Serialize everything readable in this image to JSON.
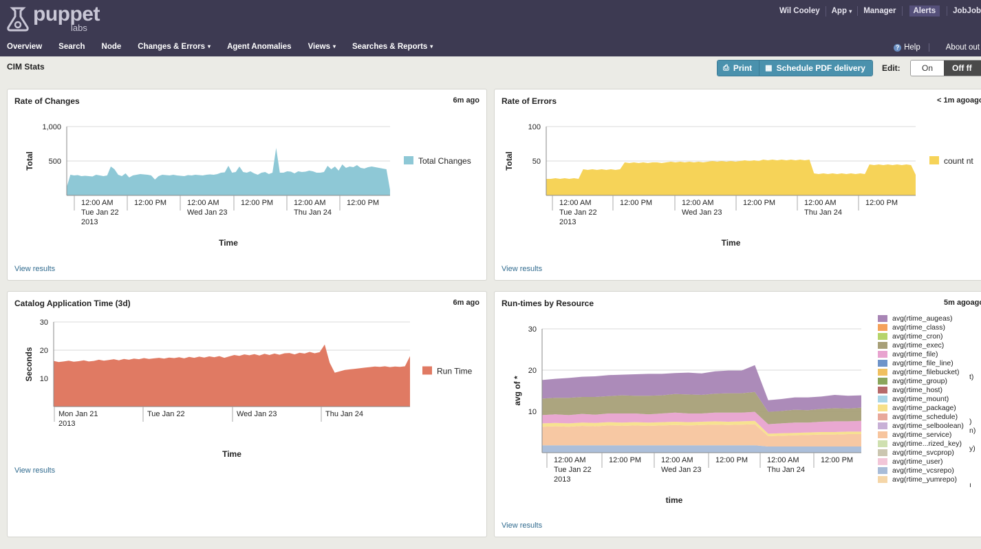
{
  "brand": {
    "word": "puppet",
    "sub": "labs"
  },
  "user_nav": {
    "user": "Wil Cooley",
    "app": "App",
    "manager": "Manager",
    "alerts": "Alerts",
    "jobs": "JobJob"
  },
  "main_nav": [
    "Overview",
    "Search",
    "Node",
    "Changes & Errors",
    "Agent Anomalies",
    "Views",
    "Searches & Reports"
  ],
  "main_nav_dropdowns": [
    false,
    false,
    false,
    true,
    false,
    true,
    true
  ],
  "right_nav": {
    "help": "Help",
    "about": "About out"
  },
  "page_title": "CIM Stats",
  "toolbar": {
    "print": "Print",
    "schedule": "Schedule PDF delivery",
    "edit_label": "Edit:",
    "on": "On",
    "off": "Off  ff"
  },
  "colors": {
    "topbar": "#3d3a52",
    "button": "#4a91ad",
    "link": "#2f6a8e"
  },
  "panels": {
    "changes": {
      "title": "Rate of Changes",
      "age": "6m ago",
      "link": "View results"
    },
    "errors": {
      "title": "Rate of Errors",
      "age": "< 1m agoago",
      "link": "View results"
    },
    "catalog": {
      "title": "Catalog Application Time (3d)",
      "age": "6m ago",
      "link": "View results"
    },
    "runtimes": {
      "title": "Run-times by Resource",
      "age": "5m agoago",
      "link": "View results"
    }
  },
  "chart_data": [
    {
      "type": "area",
      "title": "Rate of Changes",
      "xlabel": "Time",
      "ylabel": "Total",
      "ylim": [
        0,
        1000
      ],
      "yticks": [
        "1,000",
        "500"
      ],
      "xticks": [
        "12:00 AM\nTue Jan 22\n2013",
        "12:00 PM",
        "12:00 AM\nWed Jan 23",
        "12:00 PM",
        "12:00 AM\nThu Jan 24",
        "12:00 PM"
      ],
      "color": "#8ec8d6",
      "legend": "right",
      "series": [
        {
          "name": "Total Changes",
          "values": [
            120,
            300,
            290,
            295,
            280,
            285,
            280,
            275,
            300,
            290,
            280,
            290,
            420,
            380,
            300,
            280,
            320,
            260,
            290,
            300,
            310,
            305,
            300,
            290,
            230,
            280,
            300,
            295,
            290,
            300,
            290,
            285,
            280,
            295,
            290,
            300,
            295,
            290,
            300,
            305,
            300,
            310,
            330,
            335,
            430,
            330,
            340,
            420,
            340,
            330,
            350,
            320,
            300,
            330,
            340,
            310,
            330,
            690,
            330,
            330,
            350,
            345,
            320,
            350,
            340,
            345,
            360,
            350,
            330,
            330,
            340,
            430,
            380,
            420,
            360,
            450,
            400,
            420,
            410,
            440,
            400,
            390,
            410,
            420,
            410,
            400,
            390,
            380,
            80
          ]
        }
      ]
    },
    {
      "type": "area",
      "title": "Rate of Errors",
      "xlabel": "Time",
      "ylabel": "Total",
      "ylim": [
        0,
        100
      ],
      "yticks": [
        "100",
        "50"
      ],
      "xticks": [
        "12:00 AM\nTue Jan 22\n2013",
        "12:00 PM",
        "12:00 AM\nWed Jan 23",
        "12:00 PM",
        "12:00 AM\nThu Jan 24",
        "12:00 PM"
      ],
      "color": "#f6d358",
      "legend": "right",
      "series": [
        {
          "name": "count nt",
          "values": [
            24,
            24,
            25,
            24,
            25,
            24,
            25,
            24,
            38,
            37,
            38,
            37,
            38,
            37,
            38,
            37,
            38,
            48,
            47,
            48,
            47,
            48,
            47,
            48,
            48,
            47,
            48,
            49,
            48,
            49,
            48,
            49,
            48,
            49,
            48,
            49,
            50,
            49,
            50,
            49,
            50,
            49,
            50,
            51,
            50,
            51,
            50,
            52,
            51,
            52,
            51,
            52,
            51,
            52,
            51,
            52,
            51,
            52,
            32,
            31,
            32,
            31,
            32,
            31,
            32,
            31,
            32,
            31,
            32,
            31,
            45,
            44,
            45,
            44,
            45,
            44,
            45,
            44,
            45,
            44,
            30
          ]
        }
      ]
    },
    {
      "type": "area",
      "title": "Catalog Application Time (3d)",
      "xlabel": "Time",
      "ylabel": "Seconds",
      "ylim": [
        0,
        30
      ],
      "yticks": [
        "30",
        "20",
        "10"
      ],
      "xticks": [
        "Mon Jan 21\n2013",
        "Tue Jan 22",
        "Wed Jan 23",
        "Thu Jan 24"
      ],
      "color": "#e07a63",
      "legend": "right",
      "series": [
        {
          "name": "Run Time",
          "values": [
            16.2,
            15.8,
            16.0,
            16.3,
            15.9,
            16.1,
            16.4,
            16.0,
            16.2,
            16.6,
            16.3,
            16.5,
            16.8,
            16.4,
            16.9,
            16.6,
            17.0,
            16.8,
            17.2,
            16.9,
            17.1,
            17.3,
            17.0,
            17.4,
            17.2,
            17.5,
            17.1,
            17.6,
            17.3,
            17.7,
            17.4,
            17.8,
            17.5,
            17.9,
            17.3,
            17.8,
            18.3,
            18.0,
            18.5,
            18.2,
            18.6,
            18.1,
            18.7,
            18.3,
            18.8,
            18.4,
            18.9,
            19.0,
            18.5,
            19.1,
            18.8,
            19.4,
            18.9,
            19.3,
            22.0,
            15.5,
            12.0,
            12.5,
            13.0,
            13.2,
            13.4,
            13.6,
            13.8,
            14.0,
            14.2,
            14.1,
            14.3,
            14.0,
            14.2,
            14.1,
            14.3,
            17.9
          ]
        }
      ]
    },
    {
      "type": "area",
      "stacked": true,
      "title": "Run-times by Resource",
      "xlabel": "time",
      "ylabel": "avg of *",
      "ylim": [
        0,
        30
      ],
      "yticks": [
        "30",
        "20",
        "10"
      ],
      "xticks": [
        "12:00 AM\nTue Jan 22\n2013",
        "12:00 PM",
        "12:00 AM\nWed Jan 23",
        "12:00 PM",
        "12:00 AM\nThu Jan 24",
        "12:00 PM"
      ],
      "legend": "right",
      "series": [
        {
          "name": "avg(rtime_augeas)",
          "color": "#a885b5",
          "values": [
            4.5,
            4.6,
            4.8,
            4.9,
            5.0,
            5.1,
            5.0,
            5.2,
            5.3,
            5.2,
            5.1,
            5.3,
            5.2,
            5.4,
            5.5,
            5.5,
            6.5,
            2.8,
            2.9,
            3.0,
            3.1,
            3.0,
            3.2,
            3.1,
            3.0
          ]
        },
        {
          "name": "avg(rtime_exec)",
          "color": "#a8a078",
          "values": [
            4.0,
            4.0,
            4.2,
            4.1,
            4.3,
            4.2,
            4.4,
            4.3,
            4.5,
            4.4,
            4.5,
            4.6,
            4.5,
            4.6,
            4.7,
            4.7,
            4.8,
            3.0,
            3.0,
            3.1,
            3.0,
            3.1,
            3.2,
            3.1,
            3.2
          ]
        },
        {
          "name": "avg(rtime_file)",
          "color": "#e8a3cf",
          "values": [
            2.0,
            2.1,
            2.0,
            2.1,
            2.0,
            2.1,
            2.2,
            2.1,
            2.0,
            2.1,
            2.2,
            2.1,
            2.0,
            2.1,
            2.2,
            2.1,
            2.2,
            2.3,
            2.4,
            2.5,
            2.4,
            2.5,
            2.6,
            2.5,
            2.6
          ]
        },
        {
          "name": "avg(rtime_package)",
          "color": "#f7e08a",
          "values": [
            0.8,
            0.8,
            0.8,
            0.8,
            0.8,
            0.8,
            0.8,
            0.8,
            0.8,
            0.8,
            0.8,
            0.8,
            0.8,
            0.8,
            0.8,
            0.8,
            0.8,
            0.6,
            0.6,
            0.6,
            0.6,
            0.6,
            0.6,
            0.6,
            0.6
          ]
        },
        {
          "name": "avg(rtime_service)",
          "color": "#f7c59e",
          "values": [
            4.5,
            4.6,
            4.5,
            4.7,
            4.6,
            4.8,
            4.7,
            4.8,
            4.7,
            4.8,
            4.9,
            4.8,
            4.9,
            5.0,
            4.9,
            5.0,
            5.1,
            2.5,
            2.6,
            2.7,
            2.8,
            2.9,
            2.9,
            3.0,
            3.0
          ]
        },
        {
          "name": "avg(rtime_vcsrepo)",
          "color": "#a8bcd8",
          "values": [
            1.8,
            1.8,
            1.8,
            1.8,
            1.8,
            1.8,
            1.8,
            1.8,
            1.8,
            1.8,
            1.8,
            1.8,
            1.8,
            1.8,
            1.8,
            1.8,
            1.8,
            1.5,
            1.5,
            1.5,
            1.5,
            1.5,
            1.5,
            1.5,
            1.5
          ]
        }
      ],
      "legend_entries": [
        {
          "name": "avg(rtime_augeas)",
          "color": "#a885b5"
        },
        {
          "name": "avg(rtime_class)",
          "color": "#f5a15a"
        },
        {
          "name": "avg(rtime_cron)",
          "color": "#b6d46a"
        },
        {
          "name": "avg(rtime_exec)",
          "color": "#a8a078"
        },
        {
          "name": "avg(rtime_file)",
          "color": "#e8a3cf"
        },
        {
          "name": "avg(rtime_file_line)",
          "color": "#6f94c9"
        },
        {
          "name": "avg(rtime_filebucket)",
          "color": "#f0c060"
        },
        {
          "name": "avg(rtime_group)",
          "color": "#8aa65c"
        },
        {
          "name": "avg(rtime_host)",
          "color": "#b66a6a"
        },
        {
          "name": "avg(rtime_mount)",
          "color": "#a9d6e8"
        },
        {
          "name": "avg(rtime_package)",
          "color": "#f7e08a"
        },
        {
          "name": "avg(rtime_schedule)",
          "color": "#e8a89a"
        },
        {
          "name": "avg(rtime_selboolean)",
          "color": "#c8b0d6"
        },
        {
          "name": "avg(rtime_service)",
          "color": "#f7c59e"
        },
        {
          "name": "avg(rtime...rized_key)",
          "color": "#cfe0b0"
        },
        {
          "name": "avg(rtime_svcprop)",
          "color": "#cbc6b0"
        },
        {
          "name": "avg(rtime_user)",
          "color": "#f2c6d8"
        },
        {
          "name": "avg(rtime_vcsrepo)",
          "color": "#a8bcd8"
        },
        {
          "name": "avg(rtime_yumrepo)",
          "color": "#f5d6a8"
        }
      ],
      "legend_overflow": [
        "t)",
        ")",
        "n)",
        "y)",
        "ı"
      ]
    }
  ]
}
